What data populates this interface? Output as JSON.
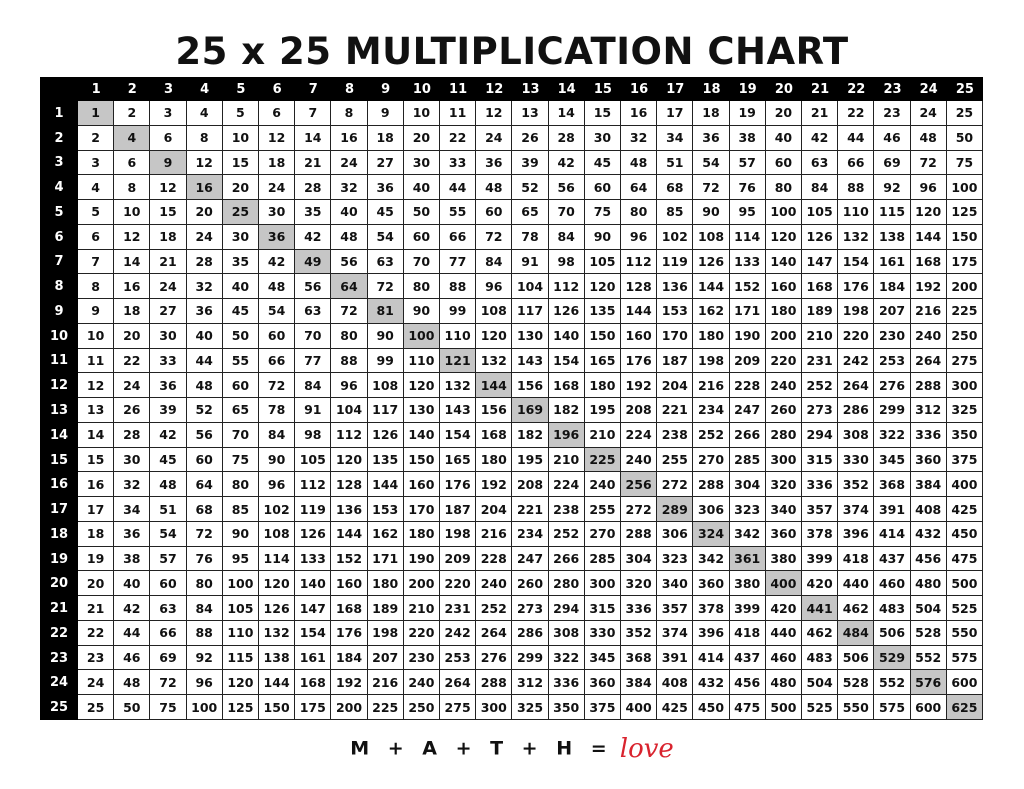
{
  "title": "25 x 25 MULTIPLICATION CHART",
  "colors": {
    "header_bg": "#000000",
    "diagonal_highlight": "#c6c6c6",
    "love_red": "#d9232e"
  },
  "column_headers": [
    "1",
    "2",
    "3",
    "4",
    "5",
    "6",
    "7",
    "8",
    "9",
    "10",
    "11",
    "12",
    "13",
    "14",
    "15",
    "16",
    "17",
    "18",
    "19",
    "20",
    "21",
    "22",
    "23",
    "24",
    "25"
  ],
  "row_headers": [
    "1",
    "2",
    "3",
    "4",
    "5",
    "6",
    "7",
    "8",
    "9",
    "10",
    "11",
    "12",
    "13",
    "14",
    "15",
    "16",
    "17",
    "18",
    "19",
    "20",
    "21",
    "22",
    "23",
    "24",
    "25"
  ],
  "rows": [
    [
      1,
      2,
      3,
      4,
      5,
      6,
      7,
      8,
      9,
      10,
      11,
      12,
      13,
      14,
      15,
      16,
      17,
      18,
      19,
      20,
      21,
      22,
      23,
      24,
      25
    ],
    [
      2,
      4,
      6,
      8,
      10,
      12,
      14,
      16,
      18,
      20,
      22,
      24,
      26,
      28,
      30,
      32,
      34,
      36,
      38,
      40,
      42,
      44,
      46,
      48,
      50
    ],
    [
      3,
      6,
      9,
      12,
      15,
      18,
      21,
      24,
      27,
      30,
      33,
      36,
      39,
      42,
      45,
      48,
      51,
      54,
      57,
      60,
      63,
      66,
      69,
      72,
      75
    ],
    [
      4,
      8,
      12,
      16,
      20,
      24,
      28,
      32,
      36,
      40,
      44,
      48,
      52,
      56,
      60,
      64,
      68,
      72,
      76,
      80,
      84,
      88,
      92,
      96,
      100
    ],
    [
      5,
      10,
      15,
      20,
      25,
      30,
      35,
      40,
      45,
      50,
      55,
      60,
      65,
      70,
      75,
      80,
      85,
      90,
      95,
      100,
      105,
      110,
      115,
      120,
      125
    ],
    [
      6,
      12,
      18,
      24,
      30,
      36,
      42,
      48,
      54,
      60,
      66,
      72,
      78,
      84,
      90,
      96,
      102,
      108,
      114,
      120,
      126,
      132,
      138,
      144,
      150
    ],
    [
      7,
      14,
      21,
      28,
      35,
      42,
      49,
      56,
      63,
      70,
      77,
      84,
      91,
      98,
      105,
      112,
      119,
      126,
      133,
      140,
      147,
      154,
      161,
      168,
      175
    ],
    [
      8,
      16,
      24,
      32,
      40,
      48,
      56,
      64,
      72,
      80,
      88,
      96,
      104,
      112,
      120,
      128,
      136,
      144,
      152,
      160,
      168,
      176,
      184,
      192,
      200
    ],
    [
      9,
      18,
      27,
      36,
      45,
      54,
      63,
      72,
      81,
      90,
      99,
      108,
      117,
      126,
      135,
      144,
      153,
      162,
      171,
      180,
      189,
      198,
      207,
      216,
      225
    ],
    [
      10,
      20,
      30,
      40,
      50,
      60,
      70,
      80,
      90,
      100,
      110,
      120,
      130,
      140,
      150,
      160,
      170,
      180,
      190,
      200,
      210,
      220,
      230,
      240,
      250
    ],
    [
      11,
      22,
      33,
      44,
      55,
      66,
      77,
      88,
      99,
      110,
      121,
      132,
      143,
      154,
      165,
      176,
      187,
      198,
      209,
      220,
      231,
      242,
      253,
      264,
      275
    ],
    [
      12,
      24,
      36,
      48,
      60,
      72,
      84,
      96,
      108,
      120,
      132,
      144,
      156,
      168,
      180,
      192,
      204,
      216,
      228,
      240,
      252,
      264,
      276,
      288,
      300
    ],
    [
      13,
      26,
      39,
      52,
      65,
      78,
      91,
      104,
      117,
      130,
      143,
      156,
      169,
      182,
      195,
      208,
      221,
      234,
      247,
      260,
      273,
      286,
      299,
      312,
      325
    ],
    [
      14,
      28,
      42,
      56,
      70,
      84,
      98,
      112,
      126,
      140,
      154,
      168,
      182,
      196,
      210,
      224,
      238,
      252,
      266,
      280,
      294,
      308,
      322,
      336,
      350
    ],
    [
      15,
      30,
      45,
      60,
      75,
      90,
      105,
      120,
      135,
      150,
      165,
      180,
      195,
      210,
      225,
      240,
      255,
      270,
      285,
      300,
      315,
      330,
      345,
      360,
      375
    ],
    [
      16,
      32,
      48,
      64,
      80,
      96,
      112,
      128,
      144,
      160,
      176,
      192,
      208,
      224,
      240,
      256,
      272,
      288,
      304,
      320,
      336,
      352,
      368,
      384,
      400
    ],
    [
      17,
      34,
      51,
      68,
      85,
      102,
      119,
      136,
      153,
      170,
      187,
      204,
      221,
      238,
      255,
      272,
      289,
      306,
      323,
      340,
      357,
      374,
      391,
      408,
      425
    ],
    [
      18,
      36,
      54,
      72,
      90,
      108,
      126,
      144,
      162,
      180,
      198,
      216,
      234,
      252,
      270,
      288,
      306,
      324,
      342,
      360,
      378,
      396,
      414,
      432,
      450
    ],
    [
      19,
      38,
      57,
      76,
      95,
      114,
      133,
      152,
      171,
      190,
      209,
      228,
      247,
      266,
      285,
      304,
      323,
      342,
      361,
      380,
      399,
      418,
      437,
      456,
      475
    ],
    [
      20,
      40,
      60,
      80,
      100,
      120,
      140,
      160,
      180,
      200,
      220,
      240,
      260,
      280,
      300,
      320,
      340,
      360,
      380,
      400,
      420,
      440,
      460,
      480,
      500
    ],
    [
      21,
      42,
      63,
      84,
      105,
      126,
      147,
      168,
      189,
      210,
      231,
      252,
      273,
      294,
      315,
      336,
      357,
      378,
      399,
      420,
      441,
      462,
      483,
      504,
      525
    ],
    [
      22,
      44,
      66,
      88,
      110,
      132,
      154,
      176,
      198,
      220,
      242,
      264,
      286,
      308,
      330,
      352,
      374,
      396,
      418,
      440,
      462,
      484,
      506,
      528,
      550
    ],
    [
      23,
      46,
      69,
      92,
      115,
      138,
      161,
      184,
      207,
      230,
      253,
      276,
      299,
      322,
      345,
      368,
      391,
      414,
      437,
      460,
      483,
      506,
      529,
      552,
      575
    ],
    [
      24,
      48,
      72,
      96,
      120,
      144,
      168,
      192,
      216,
      240,
      264,
      288,
      312,
      336,
      360,
      384,
      408,
      432,
      456,
      480,
      504,
      528,
      552,
      576,
      600
    ],
    [
      25,
      50,
      75,
      100,
      125,
      150,
      175,
      200,
      225,
      250,
      275,
      300,
      325,
      350,
      375,
      400,
      425,
      450,
      475,
      500,
      525,
      550,
      575,
      600,
      625
    ]
  ],
  "footer": {
    "equation": "M + A + T + H =",
    "love": "love"
  }
}
